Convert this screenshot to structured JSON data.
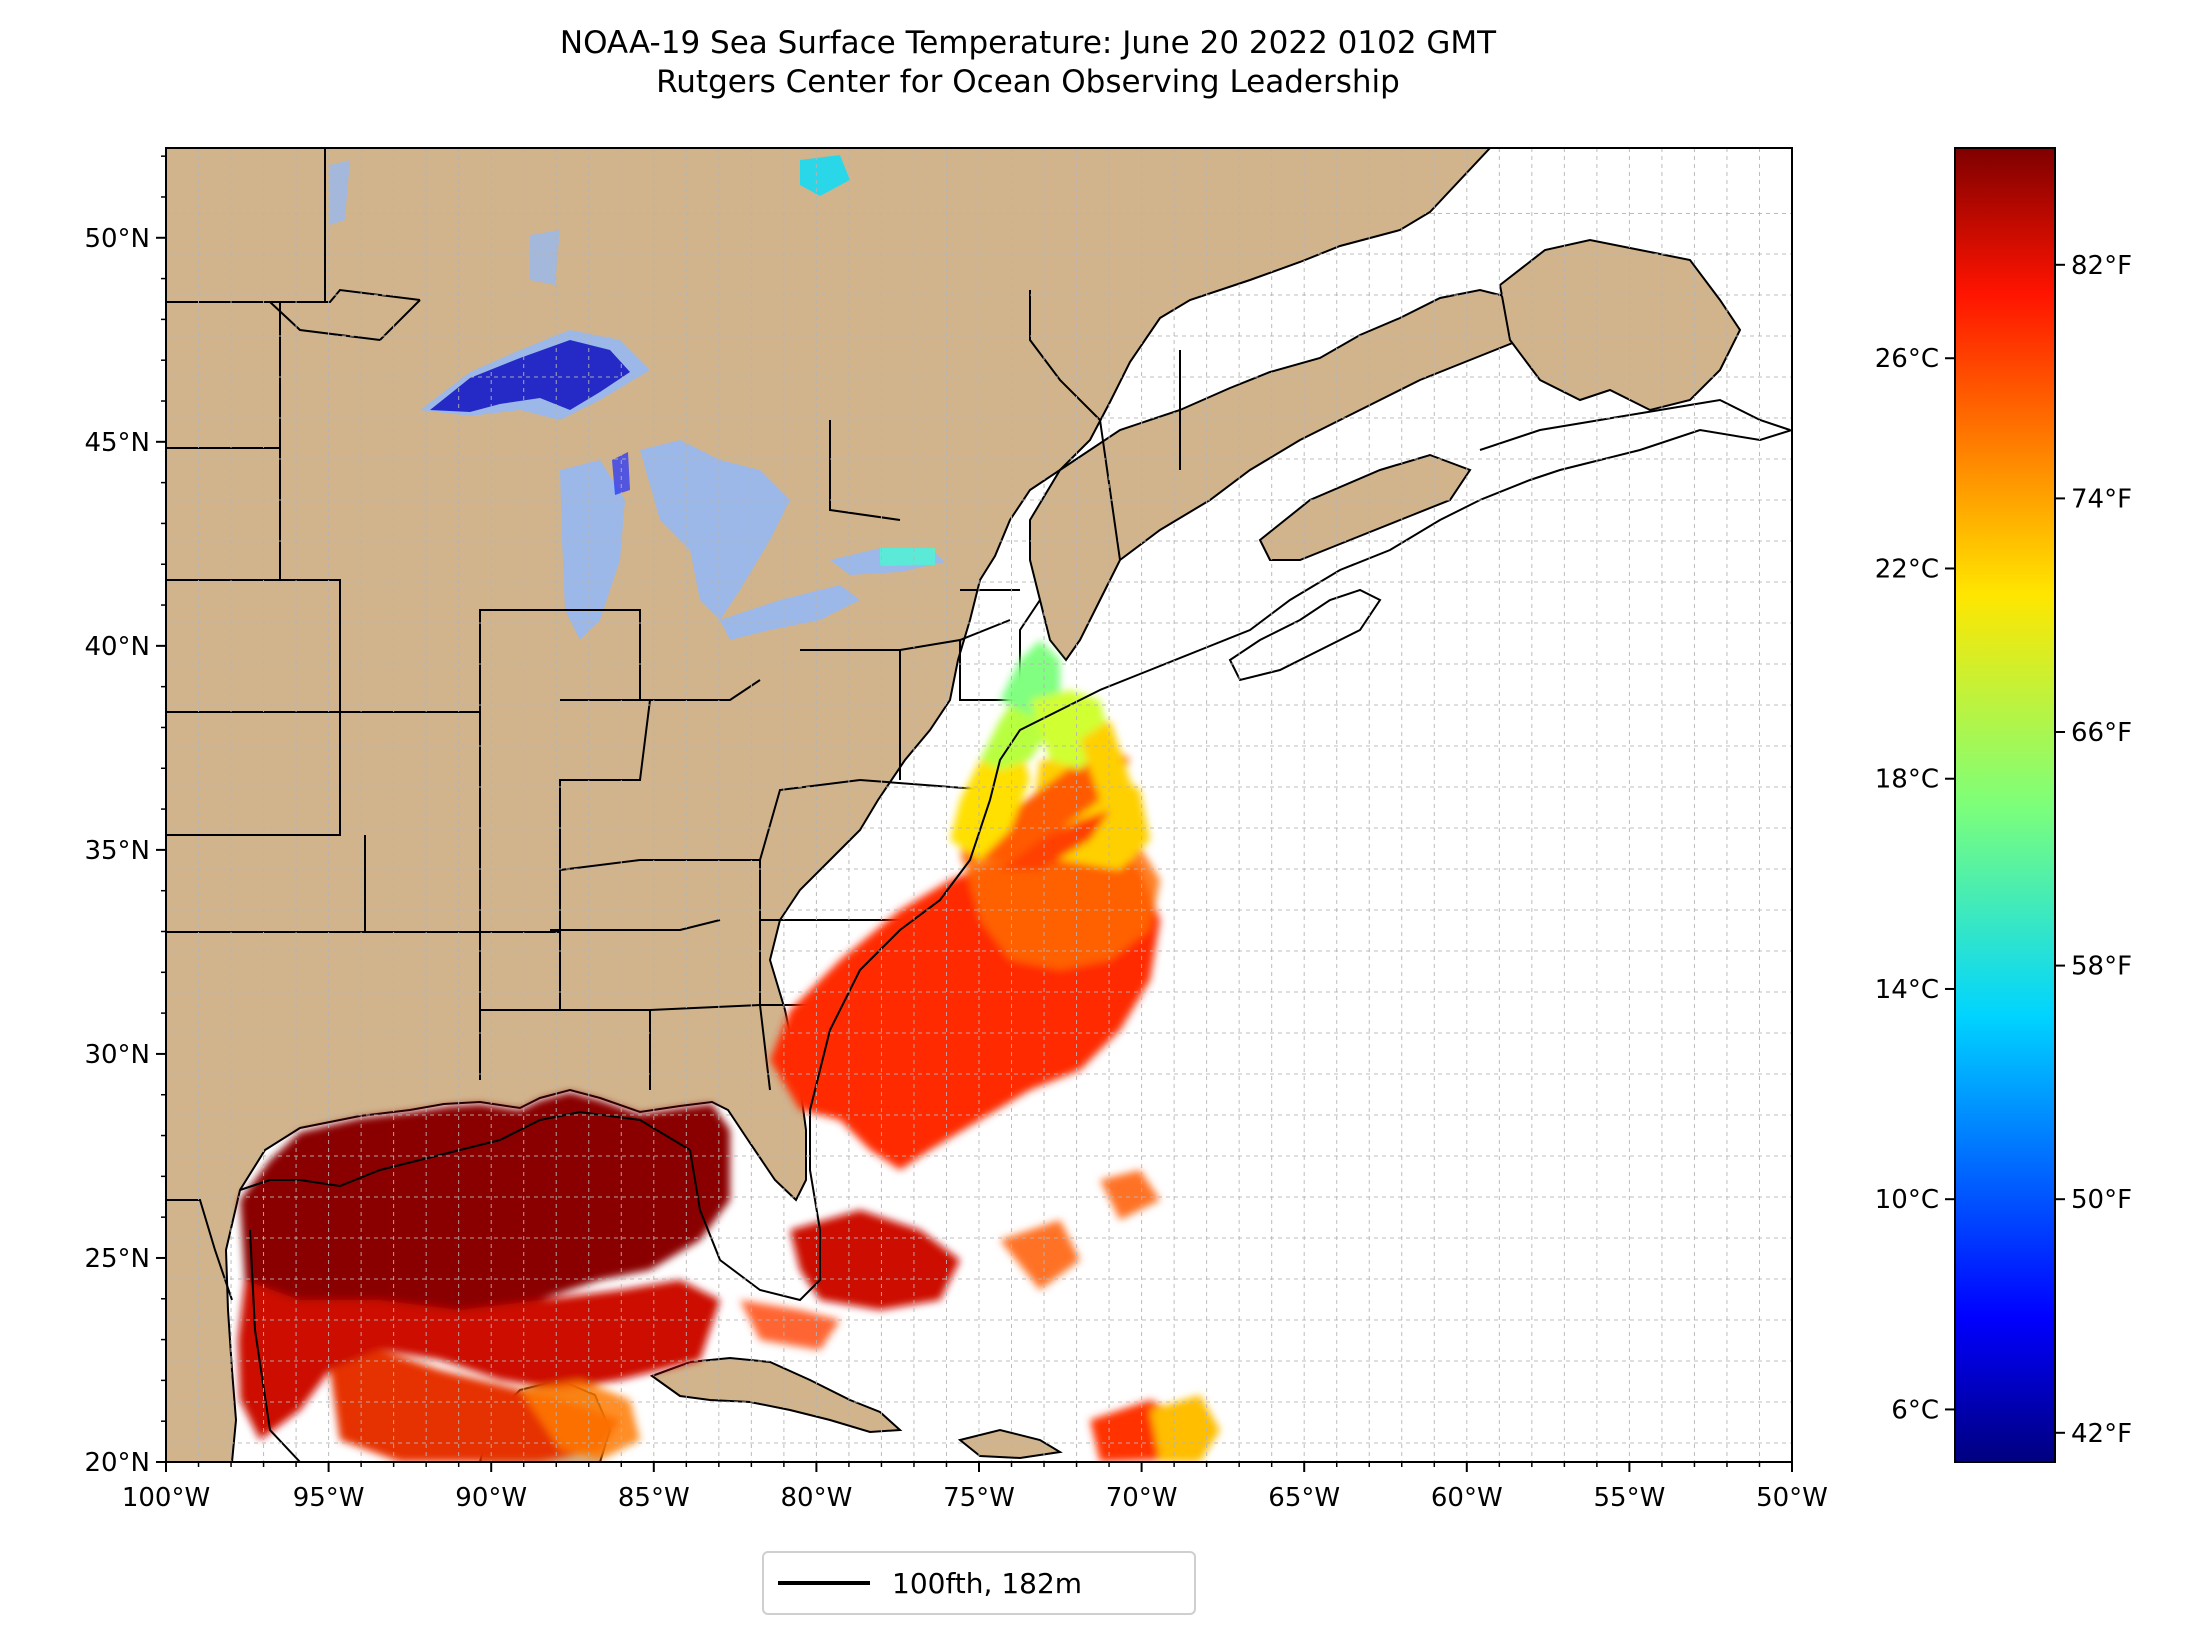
{
  "map": {
    "title": "NOAA-19 Sea Surface Temperature: June 20 2022 0102 GMT",
    "subtitle": "Rutgers Center for Ocean Observing Leadership",
    "lon_range": [
      -100,
      -50
    ],
    "lat_range": [
      20,
      52.2
    ],
    "lon_ticks": [
      "100°W",
      "95°W",
      "90°W",
      "85°W",
      "80°W",
      "75°W",
      "70°W",
      "65°W",
      "60°W",
      "55°W",
      "50°W"
    ],
    "lat_ticks": [
      "20°N",
      "25°N",
      "30°N",
      "35°N",
      "40°N",
      "45°N",
      "50°N"
    ],
    "colors": {
      "land": "#d2b48c",
      "lakes": "#9bb8e8",
      "ocean": "#ffffff",
      "grid": "#b5b5b5",
      "border": "#000000"
    },
    "legend": {
      "label": "100fth, 182m"
    },
    "colorbar": {
      "colormap": "jet",
      "celsius_ticks": [
        "6°C",
        "10°C",
        "14°C",
        "18°C",
        "22°C",
        "26°C"
      ],
      "fahrenheit_ticks": [
        "42°F",
        "50°F",
        "58°F",
        "66°F",
        "74°F",
        "82°F"
      ]
    }
  }
}
